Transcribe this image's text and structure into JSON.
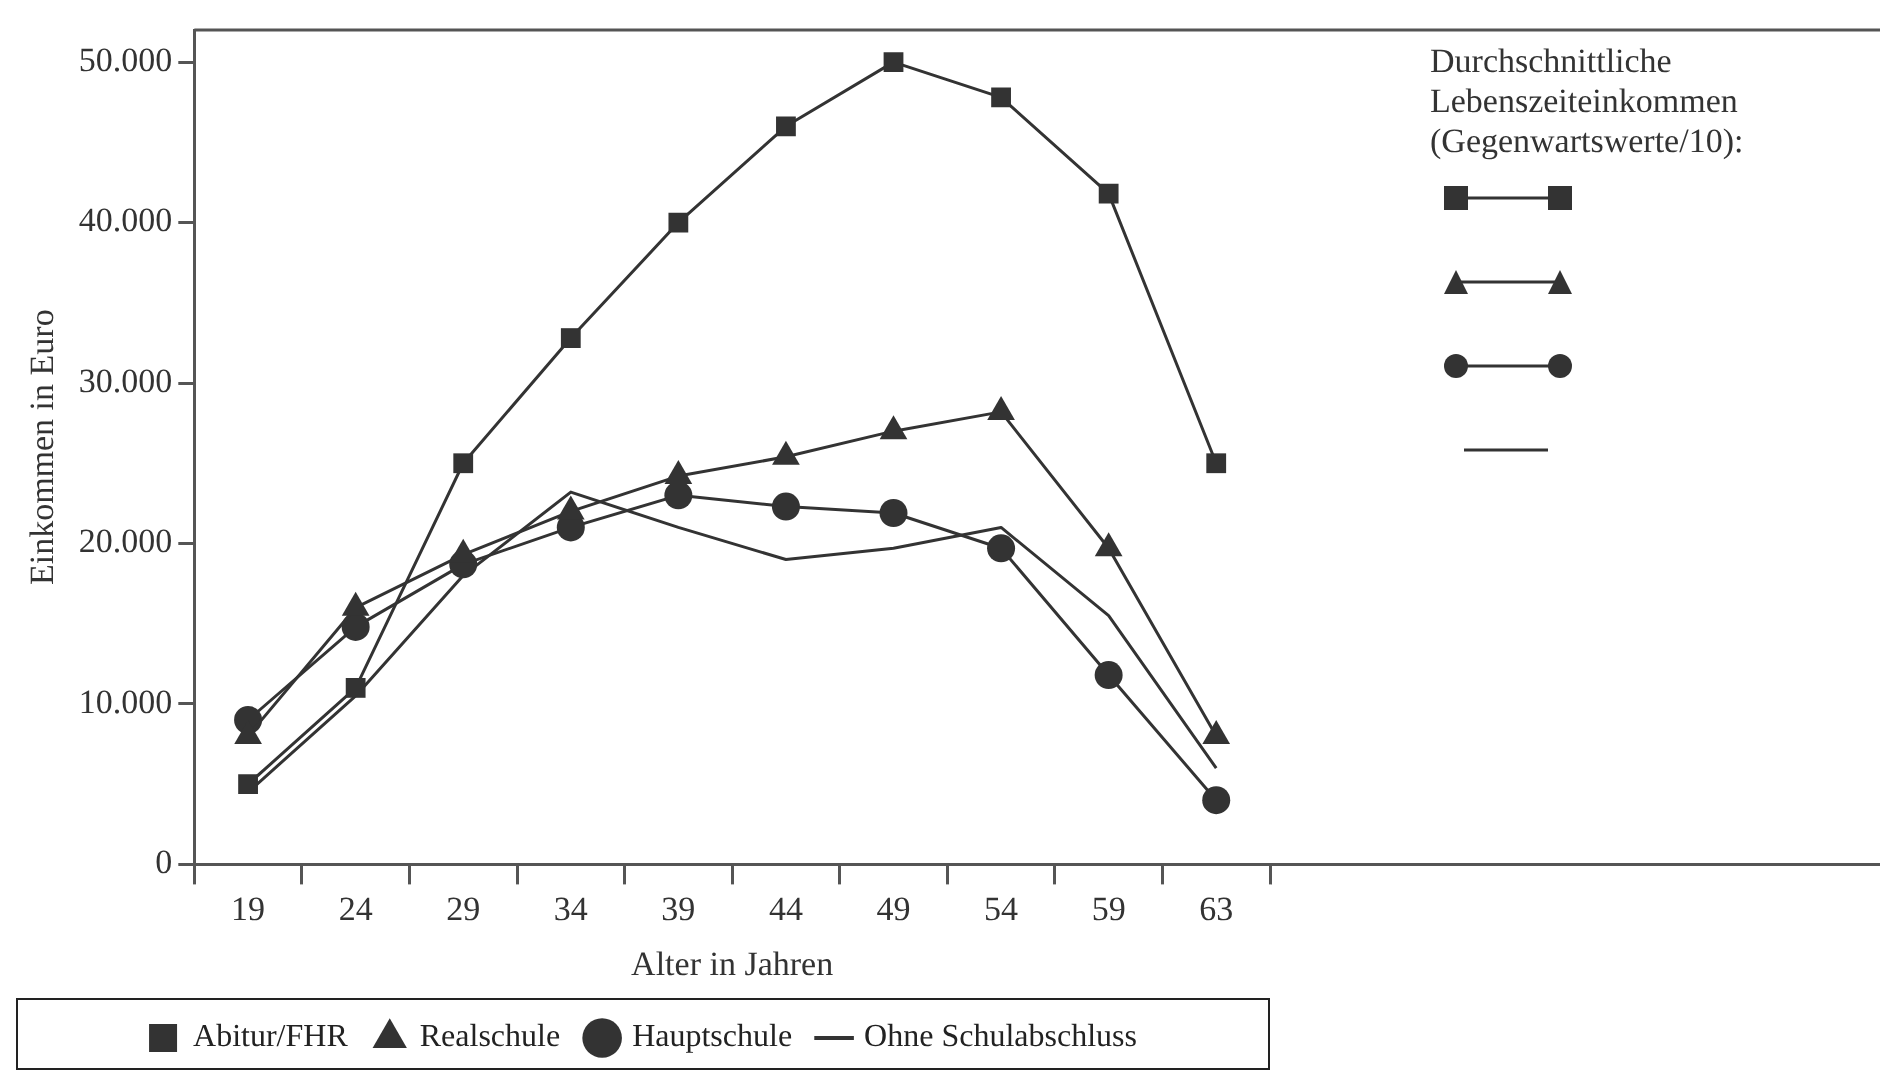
{
  "chart_data": {
    "type": "line",
    "xlabel": "Alter in Jahren",
    "ylabel": "Einkommen in Euro",
    "categories": [
      "19",
      "24",
      "29",
      "34",
      "39",
      "44",
      "49",
      "54",
      "59",
      "63"
    ],
    "series": [
      {
        "name": "Abitur/FHR",
        "color": "#333333",
        "marker": "square",
        "values": [
          5000,
          11000,
          25000,
          32800,
          40000,
          46000,
          50000,
          47800,
          41800,
          25000
        ]
      },
      {
        "name": "Realschule",
        "color": "#333333",
        "marker": "triangle",
        "values": [
          8000,
          16000,
          19300,
          22000,
          24200,
          25400,
          27000,
          28200,
          19700,
          8000
        ]
      },
      {
        "name": "Hauptschule",
        "color": "#333333",
        "marker": "circle",
        "values": [
          9000,
          14800,
          18700,
          21000,
          23000,
          22300,
          21900,
          19700,
          11800,
          4000
        ]
      },
      {
        "name": "Ohne Schulabschluss",
        "color": "#333333",
        "marker": "none",
        "values": [
          4500,
          10500,
          18000,
          23200,
          21000,
          19000,
          19700,
          21000,
          15500,
          6000
        ]
      }
    ],
    "ylim": [
      0,
      52000
    ],
    "yticks": [
      0,
      {
        "value": 10000,
        "label": "10.000"
      },
      {
        "value": 20000,
        "label": "20.000"
      },
      {
        "value": 30000,
        "label": "30.000"
      },
      {
        "value": 40000,
        "label": "40.000"
      },
      {
        "value": 50000,
        "label": "50.000"
      }
    ],
    "grid": false,
    "legend": "bottom",
    "line_style": "solid",
    "annotations": [
      "Durchschnittliche Lebenszeiteinkommen (Gegenwartswerte/10):"
    ]
  }
}
